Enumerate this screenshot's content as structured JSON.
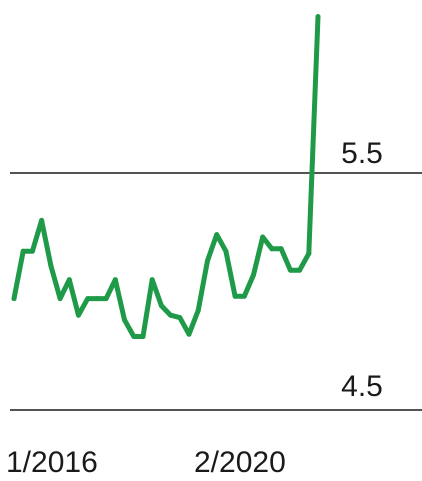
{
  "chart_data": {
    "type": "line",
    "title": "",
    "xlabel": "",
    "ylabel": "",
    "x_tick_labels": [
      "1/2016",
      "2/2020"
    ],
    "y_tick_labels": [
      "5.5",
      "4.5"
    ],
    "y_ticks": [
      5.5,
      4.5
    ],
    "grid": true,
    "series": [
      {
        "color": "#1f9a48",
        "values": [
          4.97,
          5.17,
          5.17,
          5.3,
          5.11,
          4.97,
          5.05,
          4.9,
          4.97,
          4.97,
          4.97,
          5.05,
          4.88,
          4.81,
          4.81,
          5.05,
          4.94,
          4.9,
          4.89,
          4.82,
          4.92,
          5.13,
          5.24,
          5.17,
          4.98,
          4.98,
          5.07,
          5.23,
          5.18,
          5.18,
          5.09,
          5.09,
          5.16,
          6.16
        ]
      }
    ],
    "ylim": [
      4.36,
      6.16
    ]
  }
}
